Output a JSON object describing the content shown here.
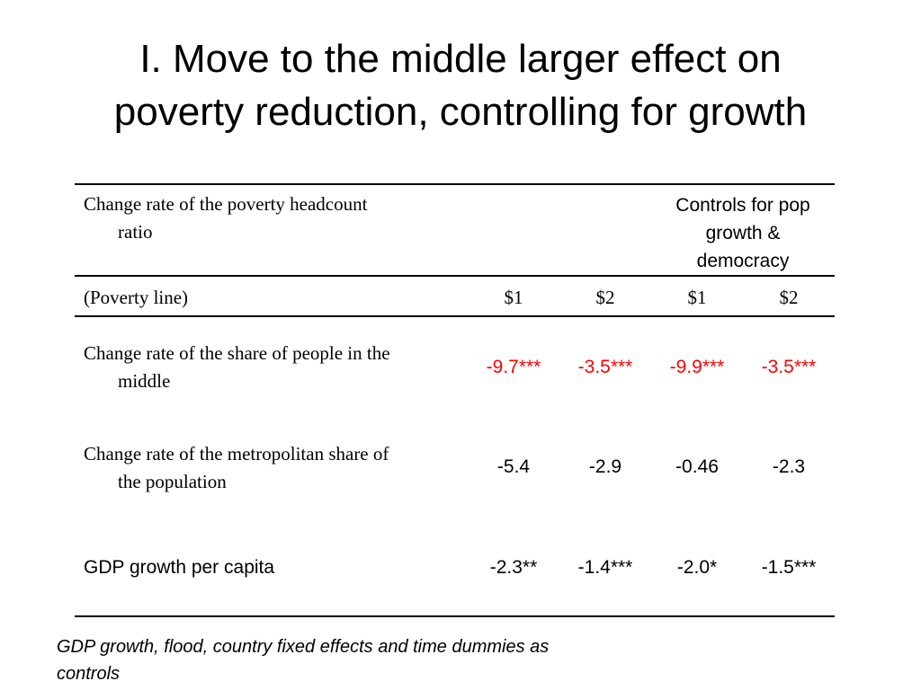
{
  "title": {
    "line1": "I. Move to the middle larger effect on",
    "line2": "poverty reduction, controlling for growth"
  },
  "table": {
    "header_label": {
      "line1": "Change rate of the poverty headcount",
      "line2": "ratio"
    },
    "controls_note": {
      "line1": "Controls for pop",
      "line2": "growth &",
      "line3": "democracy"
    },
    "poverty_line_label": "(Poverty line)",
    "column_headers": [
      "$1",
      "$2",
      "$1",
      "$2"
    ],
    "rows": [
      {
        "label_line1": "Change rate of the share of people in the",
        "label_line2": "middle",
        "values": [
          "-9.7***",
          "-3.5***",
          "-9.9***",
          "-3.5***"
        ],
        "highlight_color": "#ff0000"
      },
      {
        "label_line1": "Change rate of the metropolitan share of",
        "label_line2": "the population",
        "values": [
          "-5.4",
          "-2.9",
          "-0.46",
          "-2.3"
        ]
      },
      {
        "label_line1": "GDP growth per capita",
        "values": [
          "-2.3**",
          "-1.4***",
          "-2.0*",
          "-1.5***"
        ]
      }
    ]
  },
  "footnote": {
    "line1": "GDP growth, flood, country fixed effects and time dummies as",
    "line2": "controls"
  }
}
